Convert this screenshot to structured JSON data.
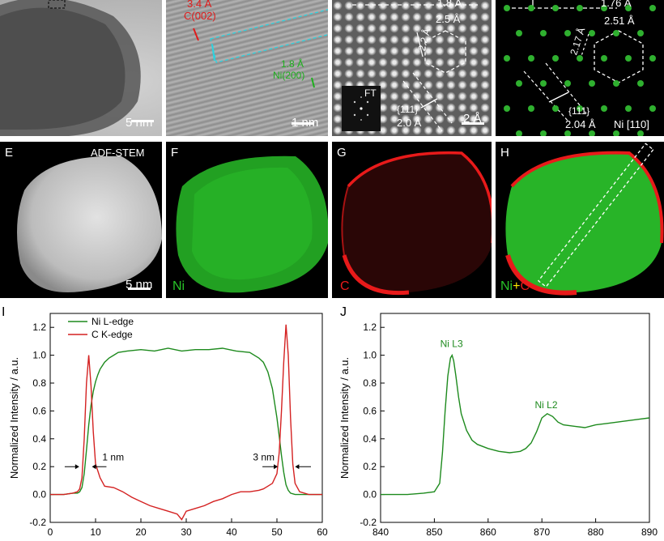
{
  "colors": {
    "ni": "#1d8a1d",
    "c": "#d42121",
    "ni_map": "#28b428",
    "c_map": "#e81a1a"
  },
  "panelA": {
    "scale": "5 nm"
  },
  "panelB": {
    "d_c": "3.4 Å",
    "c_plane": "C(002)",
    "d_ni": "1.8 Å",
    "ni_plane": "Ni(200)",
    "scale": "1 nm"
  },
  "panelC": {
    "top": "1.8 Å",
    "d1": "2.5 Å",
    "d2": "2.2 Å",
    "d3": "2.0 Å",
    "plane": "{111}",
    "ft": "FT",
    "scale": "2 Å"
  },
  "panelD": {
    "top": "1.76 Å",
    "d1": "2.51 Å",
    "d2": "2.17 Å",
    "d3": "2.04 Å",
    "plane": "{111}",
    "zone": "Ni [110]"
  },
  "panelE": {
    "letter": "E",
    "mode": "ADF-STEM",
    "scale": "5 nm"
  },
  "panelF": {
    "letter": "F",
    "element": "Ni"
  },
  "panelG": {
    "letter": "G",
    "element": "C"
  },
  "panelH": {
    "letter": "H",
    "el1": "Ni",
    "plus": "+",
    "el2": "C"
  },
  "chart_data": [
    {
      "type": "line",
      "panel": "I",
      "ylabel": "Normalized Intensity / a.u.",
      "xlim": [
        0,
        60
      ],
      "ylim": [
        -0.2,
        1.3
      ],
      "xticks": [
        0,
        10,
        20,
        30,
        40,
        50,
        60
      ],
      "yticks": [
        -0.2,
        0.0,
        0.2,
        0.4,
        0.6,
        0.8,
        1.0,
        1.2
      ],
      "legend_position": "top-left",
      "annotations": [
        "1 nm",
        "3 nm"
      ],
      "series": [
        {
          "name": "Ni L-edge",
          "color": "#1d8a1d",
          "x": [
            0,
            3,
            5,
            6,
            6.5,
            7,
            7.5,
            8,
            8.5,
            9,
            9.5,
            10,
            10.5,
            11,
            12,
            13,
            14,
            15,
            17,
            20,
            23,
            26,
            29,
            32,
            35,
            38,
            41,
            44,
            46,
            47,
            48,
            49,
            50,
            50.5,
            51,
            51.5,
            52,
            52.5,
            53,
            54,
            55,
            57,
            60
          ],
          "y": [
            0.0,
            0.0,
            0.01,
            0.01,
            0.02,
            0.05,
            0.15,
            0.32,
            0.5,
            0.64,
            0.74,
            0.81,
            0.86,
            0.9,
            0.95,
            0.98,
            1.0,
            1.02,
            1.03,
            1.04,
            1.03,
            1.05,
            1.03,
            1.04,
            1.04,
            1.05,
            1.03,
            1.02,
            0.98,
            0.95,
            0.88,
            0.76,
            0.55,
            0.42,
            0.28,
            0.16,
            0.07,
            0.03,
            0.01,
            0.0,
            0.0,
            0.0,
            0.0
          ]
        },
        {
          "name": "C K-edge",
          "color": "#d42121",
          "x": [
            0,
            3,
            5,
            6,
            6.5,
            7,
            7.5,
            8,
            8.5,
            9,
            9.5,
            10,
            11,
            12,
            14,
            16,
            18,
            20,
            22,
            24,
            26,
            28,
            29,
            30,
            32,
            34,
            36,
            38,
            40,
            42,
            44,
            46,
            47,
            48,
            49,
            50,
            50.5,
            51,
            51.5,
            52,
            52.5,
            53,
            53.5,
            54,
            55,
            57,
            60
          ],
          "y": [
            0.0,
            0.0,
            0.01,
            0.02,
            0.04,
            0.12,
            0.4,
            0.8,
            1.0,
            0.78,
            0.45,
            0.22,
            0.12,
            0.06,
            0.05,
            0.02,
            -0.02,
            -0.05,
            -0.08,
            -0.1,
            -0.12,
            -0.14,
            -0.18,
            -0.12,
            -0.1,
            -0.08,
            -0.05,
            -0.03,
            0.0,
            0.02,
            0.02,
            0.03,
            0.04,
            0.06,
            0.08,
            0.15,
            0.3,
            0.6,
            0.95,
            1.22,
            1.0,
            0.55,
            0.22,
            0.08,
            0.02,
            0.0,
            0.0
          ]
        }
      ]
    },
    {
      "type": "line",
      "panel": "J",
      "ylabel": "Normalized Intensity / a.u.",
      "xlim": [
        840,
        890
      ],
      "ylim": [
        -0.2,
        1.3
      ],
      "xticks": [
        840,
        850,
        860,
        870,
        880,
        890
      ],
      "yticks": [
        -0.2,
        0.0,
        0.2,
        0.4,
        0.6,
        0.8,
        1.0,
        1.2
      ],
      "peak_labels": [
        {
          "text": "Ni L3",
          "x": 853.2,
          "y": 1.06
        },
        {
          "text": "Ni L2",
          "x": 870.8,
          "y": 0.62
        }
      ],
      "series": [
        {
          "name": "",
          "color": "#1d8a1d",
          "x": [
            840,
            845,
            848,
            850,
            851,
            851.5,
            852,
            852.5,
            853,
            853.3,
            853.6,
            854,
            854.5,
            855,
            856,
            857,
            858,
            860,
            862,
            864,
            866,
            867,
            868,
            869,
            870,
            871,
            872,
            873,
            874,
            876,
            878,
            880,
            882,
            884,
            886,
            888,
            890
          ],
          "y": [
            0.0,
            0.0,
            0.01,
            0.02,
            0.08,
            0.3,
            0.6,
            0.85,
            0.98,
            1.0,
            0.96,
            0.85,
            0.7,
            0.58,
            0.46,
            0.39,
            0.36,
            0.33,
            0.31,
            0.3,
            0.31,
            0.33,
            0.37,
            0.45,
            0.55,
            0.58,
            0.56,
            0.52,
            0.5,
            0.49,
            0.48,
            0.5,
            0.51,
            0.52,
            0.53,
            0.54,
            0.55
          ]
        }
      ]
    }
  ]
}
